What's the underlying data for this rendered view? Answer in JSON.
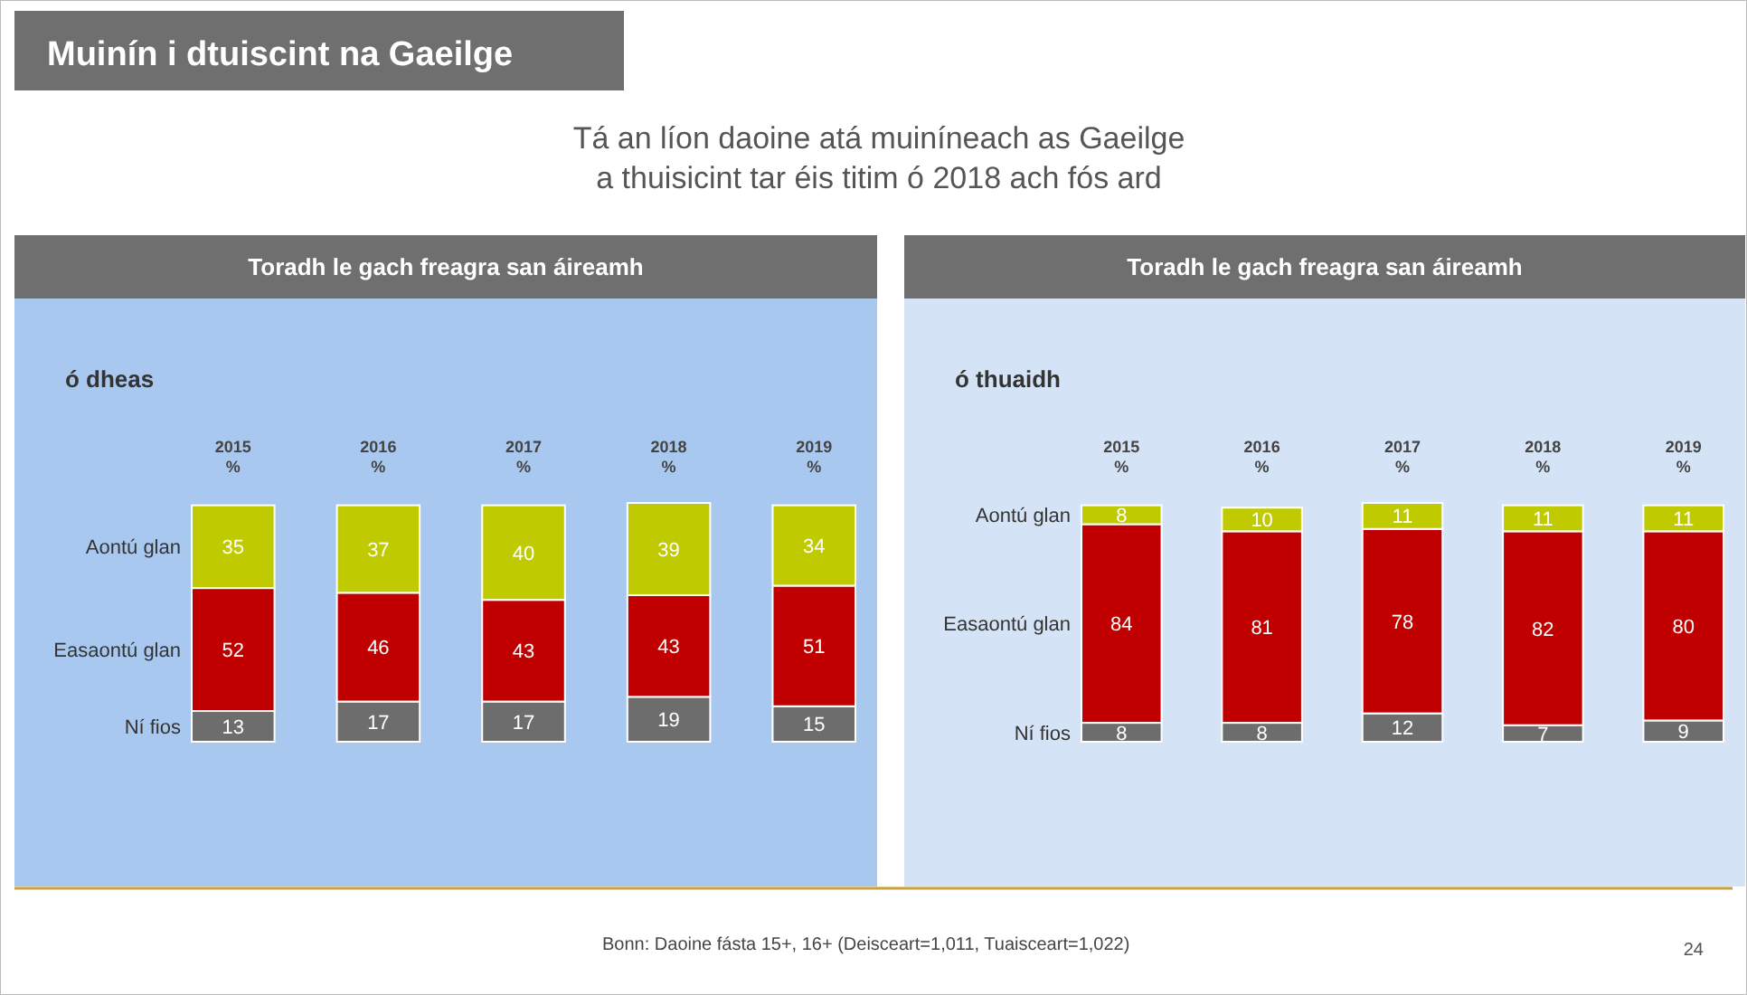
{
  "chart_data": [
    {
      "type": "bar",
      "stacked": true,
      "data_labels": true,
      "title": "ó dheas",
      "subtitle": "Toradh le gach freagra san áireamh",
      "categories": [
        "2015\n%",
        "2016\n%",
        "2017\n%",
        "2018\n%",
        "2019\n%"
      ],
      "series": [
        {
          "name": "Ní fios",
          "color": "#6d6d6d",
          "values": [
            13,
            17,
            17,
            19,
            15
          ]
        },
        {
          "name": "Easaontú glan",
          "color": "#c00000",
          "values": [
            52,
            46,
            43,
            43,
            51
          ]
        },
        {
          "name": "Aontú glan",
          "color": "#bfcb00",
          "values": [
            35,
            37,
            40,
            39,
            34
          ]
        }
      ],
      "annotations": [
        "Muinín i dtuiscint na Gaeilge",
        "Tá an líon daoine atá muiníneach as Gaeilge\na thuisicint tar éis titim ó 2018 ach fós ard",
        "Bonn: Daoine fásta 15+, 16+ (Deisceart=1,011, Tuaisceart=1,022)",
        "24"
      ]
    },
    {
      "type": "bar",
      "stacked": true,
      "data_labels": true,
      "title": "ó thuaidh",
      "subtitle": "Toradh le gach freagra san áireamh",
      "categories": [
        "2015\n%",
        "2016\n%",
        "2017\n%",
        "2018\n%",
        "2019\n%"
      ],
      "series": [
        {
          "name": "Ní fios",
          "color": "#6d6d6d",
          "values": [
            8,
            8,
            12,
            7,
            9
          ]
        },
        {
          "name": "Easaontú glan",
          "color": "#c00000",
          "values": [
            84,
            81,
            78,
            82,
            80
          ]
        },
        {
          "name": "Aontú glan",
          "color": "#bfcb00",
          "values": [
            8,
            10,
            11,
            11,
            11
          ]
        }
      ]
    }
  ]
}
